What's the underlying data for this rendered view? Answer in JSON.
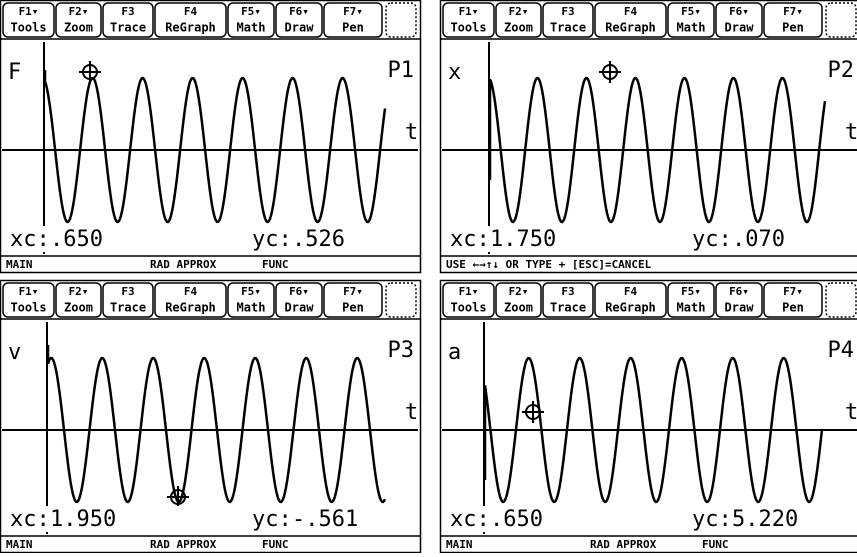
{
  "toolbar": [
    {
      "key": "F1▾",
      "label": "Tools"
    },
    {
      "key": "F2▾",
      "label": "Zoom"
    },
    {
      "key": "F3",
      "label": "Trace"
    },
    {
      "key": "F4",
      "label": "ReGraph"
    },
    {
      "key": "F5▾",
      "label": "Math"
    },
    {
      "key": "F6▾",
      "label": "Draw"
    },
    {
      "key": "F7▾",
      "label": "Pen"
    }
  ],
  "screens": [
    {
      "y_label": "F",
      "plot_label": "P1",
      "x_label": "t",
      "xc_label": "xc:",
      "xc": ".650",
      "yc_label": "yc:",
      "yc": ".526",
      "status": [
        "MAIN",
        "RAD APPROX",
        "FUNC"
      ]
    },
    {
      "y_label": "x",
      "plot_label": "P2",
      "x_label": "t",
      "xc_label": "xc:",
      "xc": "1.750",
      "yc_label": "yc:",
      "yc": ".070",
      "status": [
        "USE ←→↑↓ OR TYPE + [ESC]=CANCEL"
      ]
    },
    {
      "y_label": "v",
      "plot_label": "P3",
      "x_label": "t",
      "xc_label": "xc:",
      "xc": "1.950",
      "yc_label": "yc:",
      "yc": "-.561",
      "status": [
        "MAIN",
        "RAD APPROX",
        "FUNC"
      ]
    },
    {
      "y_label": "a",
      "plot_label": "P4",
      "x_label": "t",
      "xc_label": "xc:",
      "xc": ".650",
      "yc_label": "yc:",
      "yc": "5.220",
      "status": [
        "MAIN",
        "RAD APPROX",
        "FUNC"
      ]
    }
  ]
}
